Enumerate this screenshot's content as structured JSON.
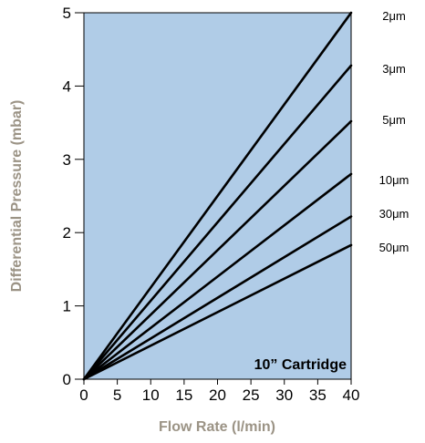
{
  "chart_data": {
    "type": "line",
    "xlabel": "Flow Rate (l/min)",
    "ylabel": "Differential Pressure (mbar)",
    "xlim": [
      0,
      40
    ],
    "ylim": [
      0,
      5
    ],
    "x_ticks": [
      "0",
      "5",
      "10",
      "15",
      "20",
      "25",
      "30",
      "35",
      "40"
    ],
    "y_ticks": [
      "0",
      "1",
      "2",
      "3",
      "4",
      "5"
    ],
    "annotation": "10” Cartridge",
    "grid": false,
    "legend": "right",
    "plot_background": "#b0cce7",
    "line_color": "#000000",
    "axis_title_color": "#9b9385",
    "series": [
      {
        "name": "2μm",
        "x": [
          0,
          40
        ],
        "y": [
          0,
          5.0
        ]
      },
      {
        "name": "3μm",
        "x": [
          0,
          40
        ],
        "y": [
          0,
          4.28
        ]
      },
      {
        "name": "5μm",
        "x": [
          0,
          40
        ],
        "y": [
          0,
          3.52
        ]
      },
      {
        "name": "10μm",
        "x": [
          0,
          40
        ],
        "y": [
          0,
          2.8
        ]
      },
      {
        "name": "30μm",
        "x": [
          0,
          40
        ],
        "y": [
          0,
          2.22
        ]
      },
      {
        "name": "50μm",
        "x": [
          0,
          40
        ],
        "y": [
          0,
          1.83
        ]
      }
    ]
  }
}
